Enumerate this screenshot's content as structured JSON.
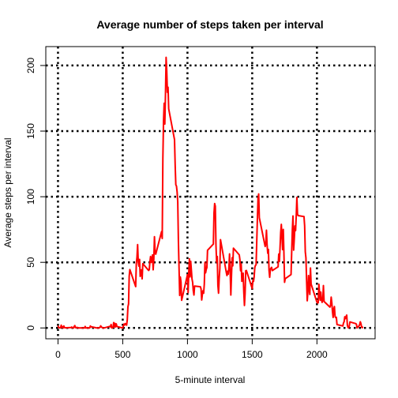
{
  "chart_data": {
    "type": "line",
    "title": "Average number of steps taken per interval",
    "xlabel": "5-minute interval",
    "ylabel": "Average steps per interval",
    "color": "#ff0000",
    "grid": true,
    "xlim": [
      -94.2,
      2449.2
    ],
    "xticks": [
      0,
      500,
      1000,
      1500,
      2000
    ],
    "ylim": [
      -8.25,
      214.4
    ],
    "yticks": [
      0,
      50,
      100,
      150,
      200
    ],
    "x": [
      0,
      5,
      10,
      15,
      20,
      25,
      30,
      35,
      40,
      45,
      50,
      55,
      100,
      105,
      110,
      115,
      120,
      125,
      130,
      135,
      140,
      145,
      150,
      155,
      200,
      205,
      210,
      215,
      220,
      225,
      230,
      235,
      240,
      245,
      250,
      255,
      300,
      305,
      310,
      315,
      320,
      325,
      330,
      335,
      340,
      345,
      350,
      355,
      400,
      405,
      410,
      415,
      420,
      425,
      430,
      435,
      440,
      445,
      450,
      455,
      500,
      505,
      510,
      515,
      520,
      525,
      530,
      535,
      540,
      545,
      550,
      555,
      600,
      605,
      610,
      615,
      620,
      625,
      630,
      635,
      640,
      645,
      650,
      655,
      700,
      705,
      710,
      715,
      720,
      725,
      730,
      735,
      740,
      745,
      750,
      755,
      800,
      805,
      810,
      815,
      820,
      825,
      830,
      835,
      840,
      845,
      850,
      855,
      900,
      905,
      910,
      915,
      920,
      925,
      930,
      935,
      940,
      945,
      950,
      955,
      1000,
      1005,
      1010,
      1015,
      1020,
      1025,
      1030,
      1035,
      1040,
      1045,
      1050,
      1055,
      1100,
      1105,
      1110,
      1115,
      1120,
      1125,
      1130,
      1135,
      1140,
      1145,
      1150,
      1155,
      1200,
      1205,
      1210,
      1215,
      1220,
      1225,
      1230,
      1235,
      1240,
      1245,
      1250,
      1255,
      1300,
      1305,
      1310,
      1315,
      1320,
      1325,
      1330,
      1335,
      1340,
      1345,
      1350,
      1355,
      1400,
      1405,
      1410,
      1415,
      1420,
      1425,
      1430,
      1435,
      1440,
      1445,
      1450,
      1455,
      1500,
      1505,
      1510,
      1515,
      1520,
      1525,
      1530,
      1535,
      1540,
      1545,
      1550,
      1555,
      1600,
      1605,
      1610,
      1615,
      1620,
      1625,
      1630,
      1635,
      1640,
      1645,
      1650,
      1655,
      1700,
      1705,
      1710,
      1715,
      1720,
      1725,
      1730,
      1735,
      1740,
      1745,
      1750,
      1755,
      1800,
      1805,
      1810,
      1815,
      1820,
      1825,
      1830,
      1835,
      1840,
      1845,
      1850,
      1855,
      1900,
      1905,
      1910,
      1915,
      1920,
      1925,
      1930,
      1935,
      1940,
      1945,
      1950,
      1955,
      2000,
      2005,
      2010,
      2015,
      2020,
      2025,
      2030,
      2035,
      2040,
      2045,
      2050,
      2055,
      2100,
      2105,
      2110,
      2115,
      2120,
      2125,
      2130,
      2135,
      2140,
      2145,
      2150,
      2155,
      2200,
      2205,
      2210,
      2215,
      2220,
      2225,
      2230,
      2235,
      2240,
      2245,
      2250,
      2255,
      2300,
      2305,
      2310,
      2315,
      2320,
      2325,
      2330,
      2335,
      2340,
      2345,
      2350,
      2355
    ],
    "values": [
      1.7,
      0.3,
      0.1,
      0.2,
      0.1,
      2.1,
      0.5,
      0.9,
      0,
      1.5,
      0.3,
      0.1,
      0.3,
      0.7,
      0.2,
      0.3,
      0,
      1.1,
      1.8,
      0.2,
      0.2,
      0.4,
      0.3,
      0,
      0,
      0,
      1.1,
      0,
      0,
      0.1,
      0,
      0.2,
      0,
      0,
      1.5,
      0.9,
      0,
      0,
      0,
      0,
      0.2,
      0.6,
      1.6,
      0.6,
      0.5,
      0.1,
      0,
      0,
      1.2,
      0.9,
      2.6,
      0,
      0.3,
      0.4,
      4.1,
      0.7,
      3.5,
      0.8,
      3.1,
      1.1,
      0,
      1.6,
      3,
      2.2,
      3.3,
      3,
      2.1,
      6.1,
      16,
      18.3,
      39.5,
      44.5,
      31.5,
      49.3,
      53.8,
      63.5,
      50,
      47.1,
      52.2,
      39.3,
      44,
      44.2,
      37.4,
      49,
      43.8,
      44.4,
      50.5,
      54.5,
      49.9,
      51,
      55.7,
      44.3,
      52.3,
      69.5,
      57.8,
      56.2,
      73.4,
      68.2,
      129.4,
      157.5,
      171.2,
      155.4,
      177.3,
      206.2,
      195.9,
      179.6,
      183.4,
      167,
      143.5,
      124,
      109.1,
      108.1,
      103.7,
      96,
      66.2,
      45.2,
      24.8,
      38.8,
      35,
      21.1,
      40.6,
      27,
      42.4,
      52.7,
      38.9,
      50.8,
      44.3,
      37.4,
      34.7,
      28.3,
      25.1,
      31.9,
      31.4,
      29.7,
      21.3,
      25.5,
      28.4,
      26.5,
      33.4,
      50,
      42,
      44.6,
      46,
      59.2,
      63.9,
      87.7,
      94.8,
      92.8,
      63.4,
      50.2,
      54.5,
      32.4,
      26.5,
      37.7,
      45.1,
      67.3,
      42.3,
      39.9,
      43.3,
      41,
      46.2,
      56.4,
      42.7,
      25.1,
      40,
      53.5,
      47.3,
      60.8,
      55.7,
      52,
      43.6,
      48.7,
      35.5,
      37.5,
      41.8,
      27.5,
      17.1,
      26.1,
      43.6,
      43.8,
      30,
      36.1,
      35.5,
      38.8,
      46,
      47.7,
      48.1,
      65.3,
      82.9,
      98.7,
      102.1,
      84,
      62.1,
      64.1,
      74.5,
      63.2,
      56.9,
      59.8,
      43.9,
      38.6,
      44.7,
      45.5,
      46.2,
      43.7,
      46.6,
      56.3,
      50.7,
      61.2,
      72.7,
      78.9,
      68.9,
      59.7,
      75.1,
      56.5,
      34.8,
      37.5,
      40.7,
      58,
      74.7,
      85.3,
      59.3,
      67.8,
      77.7,
      74.2,
      85.3,
      99.5,
      86.6,
      85.6,
      84.9,
      77.8,
      58,
      53.4,
      36.3,
      20.7,
      27.4,
      40,
      30.2,
      25.5,
      45.7,
      33.5,
      19.6,
      19,
      19.3,
      33.3,
      26.8,
      21.2,
      27.3,
      21.3,
      19.5,
      21.3,
      32.3,
      20.2,
      15.9,
      17.2,
      23.5,
      19.2,
      12.5,
      8,
      14.7,
      16.3,
      8.7,
      7.8,
      8.1,
      2.6,
      1.5,
      3.7,
      4.8,
      8.5,
      7.1,
      8.7,
      9.8,
      2.2,
      0.3,
      0.1,
      1.6,
      4.6,
      3.3,
      2.8,
      0,
      0.8,
      1,
      1.6,
      2.6,
      4.7,
      3.3,
      0.6,
      0.2,
      1.1
    ]
  }
}
